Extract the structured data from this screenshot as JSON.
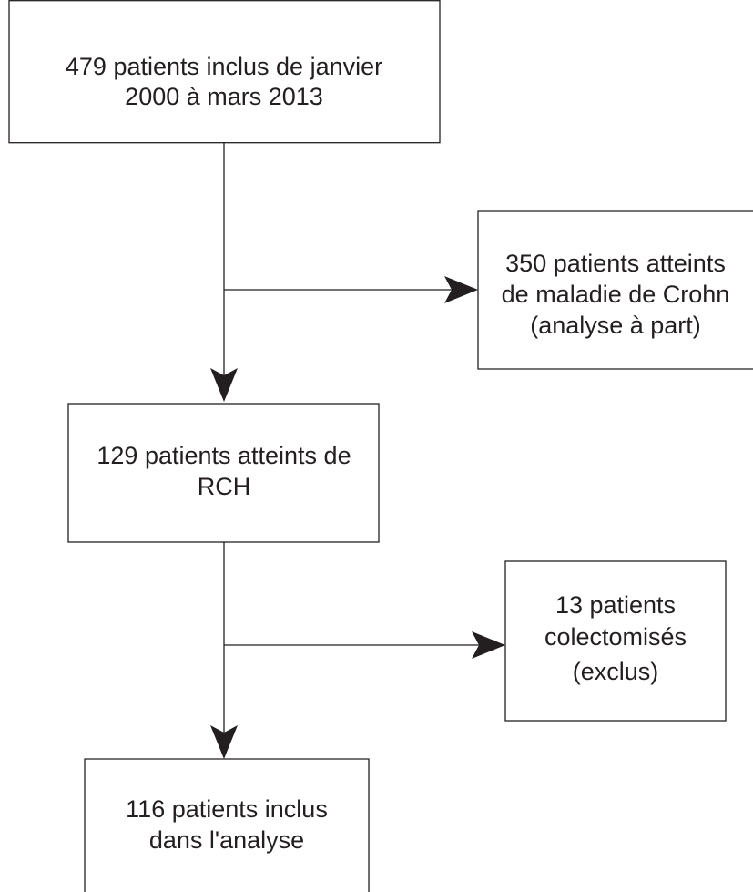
{
  "nodes": [
    {
      "lines": [
        "479 patients inclus de janvier",
        "2000 à mars 2013"
      ]
    },
    {
      "lines": [
        "350 patients atteints",
        "de maladie de Crohn",
        "(analyse à part)"
      ]
    },
    {
      "lines": [
        "129 patients atteints de",
        "RCH"
      ]
    },
    {
      "lines": [
        "13 patients",
        "colectomisés",
        "(exclus)"
      ]
    },
    {
      "lines": [
        "116 patients inclus",
        "dans l'analyse"
      ]
    }
  ]
}
